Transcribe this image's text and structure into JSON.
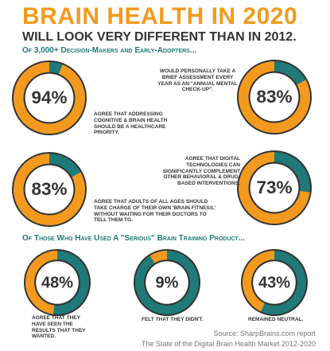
{
  "header": {
    "title": "BRAIN HEALTH IN 2020",
    "subtitle": "WILL LOOK VERY DIFFERENT THAN IN  2012.",
    "intro": "Of 3,000+ Decision-Makers and Early-Adopters..."
  },
  "style": {
    "value_color": "#f39a1e",
    "rest_color": "#1f7a78",
    "ring_color": "#333333"
  },
  "section1": {
    "items": [
      {
        "value": 94,
        "value_label": "94%",
        "text": "AGREE THAT ADDRESSING COGNITIVE & BRAIN HEALTH SHOULD BE A HEALTHCARE PRIORITY."
      },
      {
        "value": 83,
        "value_label": "83%",
        "text": "WOULD PERSONALLY TAKE A BRIEF ASSESSMENT EVERY YEAR AS AN \"ANNUAL MENTAL CHECK-UP\"."
      },
      {
        "value": 83,
        "value_label": "83%",
        "text": "AGREE THAT ADULTS OF ALL AGES SHOULD TAKE CHARGE OF THEIR OWN 'BRAIN FITNESS,' WITHOUT WAITING FOR THEIR DOCTORS TO TELL THEM TO."
      },
      {
        "value": 73,
        "value_label": "73%",
        "text": "AGREE THAT DIGITAL TECHNOLOGIES CAN SIGNIFICANTLY COMPLEMENT OTHER BEHAVIORAL & DRUG-BASED INTERVENTIONS."
      }
    ]
  },
  "section2": {
    "heading": "Of Those Who Have Used A \"Serious\" Brain Training Product...",
    "items": [
      {
        "value": 48,
        "value_label": "48%",
        "text": "AGREE THAT THEY HAVE SEEN THE RESULTS THAT THEY WANTED."
      },
      {
        "value": 9,
        "value_label": "9%",
        "text": "FELT THAT THEY DIDN'T."
      },
      {
        "value": 43,
        "value_label": "43%",
        "text": "REMAINED NEUTRAL."
      }
    ]
  },
  "footer": {
    "source": "Source: SharpBrains.com report",
    "report": "The State of the Digital Brain Health Market 2012-2020"
  }
}
